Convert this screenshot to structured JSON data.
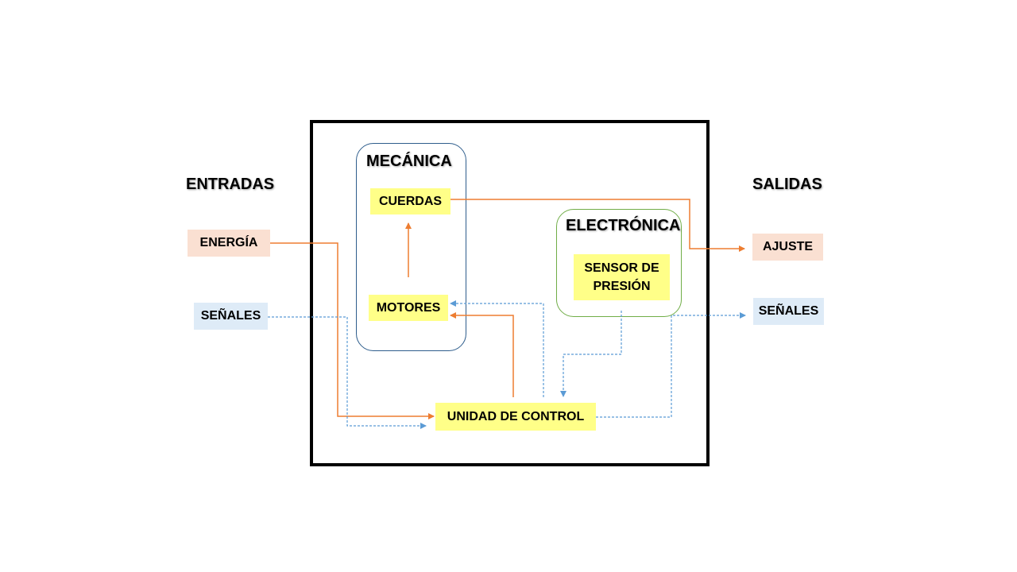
{
  "inputs": {
    "heading": "ENTRADAS",
    "energy": "ENERGÍA",
    "signals": "SEÑALES"
  },
  "outputs": {
    "heading": "SALIDAS",
    "adjust": "AJUSTE",
    "signals": "SEÑALES"
  },
  "mechanics": {
    "title": "MECÁNICA",
    "strings": "CUERDAS",
    "motors": "MOTORES"
  },
  "electronics": {
    "title": "ELECTRÓNICA",
    "sensor_line1": "SENSOR DE",
    "sensor_line2": "PRESIÓN"
  },
  "control_unit": "UNIDAD DE CONTROL",
  "colors": {
    "energy_flow": "#ed7d31",
    "signal_flow": "#5b9bd5",
    "mechanics_border": "#2e5d8c",
    "electronics_border": "#70ad47",
    "component_fill": "#ffff88"
  }
}
